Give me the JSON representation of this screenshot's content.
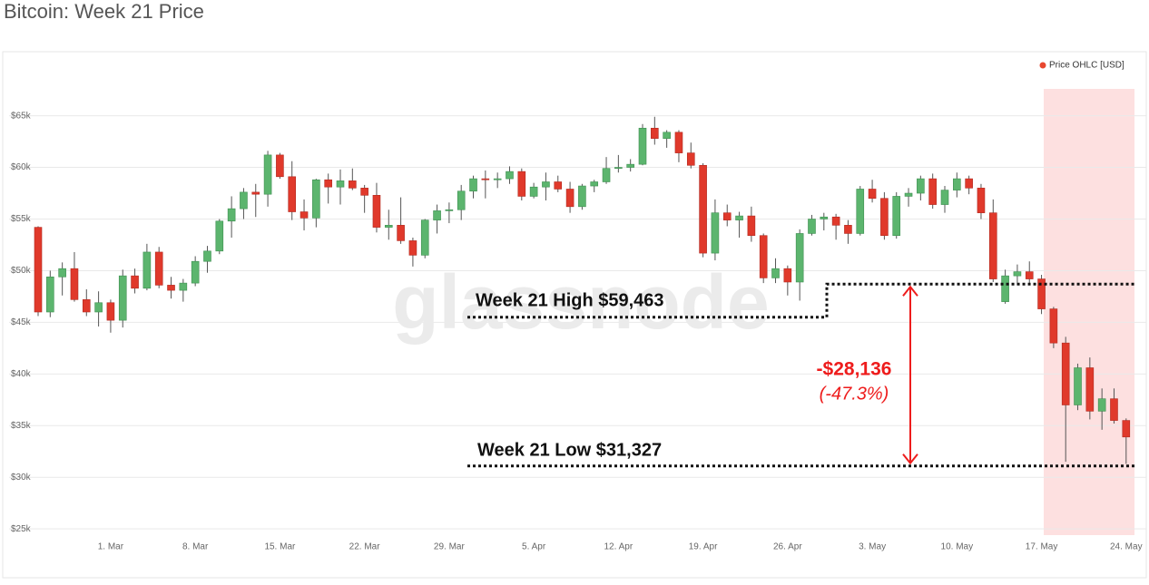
{
  "chart_data": {
    "type": "candlestick",
    "title": "Bitcoin: Week 21 Price",
    "watermark": "glassnode",
    "categories": [
      null,
      null,
      null,
      null,
      null,
      null,
      "1. Mar",
      null,
      null,
      null,
      null,
      null,
      null,
      "8. Mar",
      null,
      null,
      null,
      null,
      null,
      null,
      "15. Mar",
      null,
      null,
      null,
      null,
      null,
      null,
      "22. Mar",
      null,
      null,
      null,
      null,
      null,
      null,
      "29. Mar",
      null,
      null,
      null,
      null,
      null,
      null,
      "5. Apr",
      null,
      null,
      null,
      null,
      null,
      null,
      "12. Apr",
      null,
      null,
      null,
      null,
      null,
      null,
      "19. Apr",
      null,
      null,
      null,
      null,
      null,
      null,
      "26. Apr",
      null,
      null,
      null,
      null,
      null,
      null,
      "3. May",
      null,
      null,
      null,
      null,
      null,
      null,
      "10. May",
      null,
      null,
      null,
      null,
      null,
      null,
      "17. May",
      null,
      null,
      null,
      null,
      null,
      null,
      "24. May"
    ],
    "series": [
      {
        "name": "Price OHLC [USD]",
        "color": "#e8472f",
        "up_color": "#5cb56e",
        "down_color": "#e0392b",
        "open": [
          54200,
          46000,
          49400,
          50200,
          47200,
          46000,
          46900,
          45200,
          49500,
          48300,
          51800,
          48600,
          48100,
          48800,
          50900,
          51900,
          54800,
          56000,
          57600,
          57400,
          61200,
          59100,
          55700,
          55100,
          58800,
          58100,
          58700,
          58000,
          57300,
          54200,
          54400,
          52900,
          51500,
          54900,
          55800,
          55900,
          57700,
          58900,
          58800,
          58900,
          59600,
          57200,
          58100,
          58600,
          57900,
          56200,
          58200,
          58600,
          59900,
          60000,
          60300,
          63800,
          62800,
          63400,
          61400,
          60200,
          51700,
          55600,
          54900,
          55300,
          53400,
          49300,
          50200,
          48900,
          53600,
          55000,
          55200,
          54400,
          53600,
          57900,
          57000,
          53400,
          57200,
          57500,
          58900,
          56400,
          57800,
          58900,
          58000,
          55600,
          47000,
          49500,
          49900,
          49200,
          46300,
          43000,
          37000,
          40600,
          36400,
          37600,
          35500
        ],
        "high": [
          54300,
          50000,
          50800,
          51800,
          48200,
          48000,
          47200,
          50100,
          50200,
          52600,
          52300,
          49400,
          49200,
          51400,
          52400,
          55000,
          57200,
          58000,
          58400,
          61600,
          61400,
          60600,
          56900,
          58900,
          59400,
          59800,
          59900,
          58300,
          58500,
          55900,
          57100,
          53200,
          55000,
          56400,
          56600,
          58300,
          59200,
          59700,
          59500,
          60100,
          59900,
          58500,
          59500,
          59200,
          58600,
          58400,
          58800,
          61000,
          61200,
          60800,
          64200,
          64900,
          63600,
          63600,
          62400,
          60400,
          56900,
          56400,
          55700,
          56200,
          53600,
          51200,
          50500,
          54000,
          55400,
          55600,
          55500,
          54900,
          58200,
          58800,
          57600,
          57600,
          58000,
          59200,
          59400,
          58200,
          59500,
          59200,
          58400,
          56900,
          50100,
          50600,
          50900,
          49600,
          46500,
          43600,
          41000,
          41600,
          38600,
          38600,
          35700
        ],
        "low": [
          45600,
          45500,
          47600,
          47000,
          45600,
          44600,
          44000,
          44500,
          47800,
          48100,
          48300,
          47300,
          47000,
          48500,
          49800,
          51600,
          53200,
          55000,
          55200,
          56200,
          58900,
          54900,
          53900,
          54200,
          56500,
          56400,
          57800,
          55600,
          53700,
          53000,
          52600,
          50400,
          51200,
          53600,
          54600,
          54900,
          57000,
          57000,
          58000,
          58400,
          56800,
          57000,
          56800,
          57600,
          55600,
          55900,
          57600,
          58400,
          59500,
          59600,
          60200,
          62200,
          61900,
          60500,
          59900,
          51300,
          51000,
          54300,
          53200,
          52800,
          48800,
          48800,
          47600,
          47100,
          53400,
          53900,
          53000,
          52600,
          53400,
          56600,
          53000,
          53100,
          56200,
          56800,
          56000,
          55600,
          57100,
          57400,
          55000,
          48900,
          46800,
          48600,
          48700,
          45800,
          42500,
          31500,
          36500,
          35600,
          34600,
          35200,
          31300
        ],
        "close": [
          46000,
          49400,
          50200,
          47200,
          46000,
          46900,
          45200,
          49500,
          48300,
          51800,
          48600,
          48100,
          48800,
          50900,
          51900,
          54800,
          56000,
          57600,
          57400,
          61200,
          59100,
          55700,
          55100,
          58800,
          58100,
          58700,
          58000,
          57300,
          54200,
          54400,
          52900,
          51500,
          54900,
          55800,
          55900,
          57700,
          58900,
          58800,
          58900,
          59600,
          57200,
          58100,
          58600,
          57900,
          56200,
          58200,
          58600,
          59900,
          60000,
          60300,
          63800,
          62800,
          63400,
          61400,
          60200,
          51700,
          55600,
          54900,
          55300,
          53400,
          49300,
          50200,
          48900,
          53600,
          55000,
          55200,
          54400,
          53600,
          57900,
          57000,
          53400,
          57200,
          57500,
          58900,
          56400,
          57800,
          58900,
          58000,
          55600,
          49200,
          49500,
          49900,
          49200,
          46300,
          43000,
          37000,
          40600,
          36400,
          37600,
          35500,
          33900
        ]
      }
    ],
    "ylim": [
      24400,
      67600
    ],
    "yticks": [
      {
        "value": 25000,
        "label": "$25k"
      },
      {
        "value": 30000,
        "label": "$30k"
      },
      {
        "value": 35000,
        "label": "$35k"
      },
      {
        "value": 40000,
        "label": "$40k"
      },
      {
        "value": 45000,
        "label": "$45k"
      },
      {
        "value": 50000,
        "label": "$50k"
      },
      {
        "value": 55000,
        "label": "$55k"
      },
      {
        "value": 60000,
        "label": "$60k"
      },
      {
        "value": 65000,
        "label": "$65k"
      }
    ],
    "grid": true,
    "legend": "top-right",
    "annotations": [
      {
        "text": "Week 21 High $59,463",
        "levels": [
          45500,
          48700
        ]
      },
      {
        "text": "Week 21 Low $31,327",
        "level": 31100
      },
      {
        "text": "-$28,136",
        "color": "#ee1c1c"
      },
      {
        "text": "(-47.3%)",
        "color": "#ee1c1c"
      }
    ]
  }
}
